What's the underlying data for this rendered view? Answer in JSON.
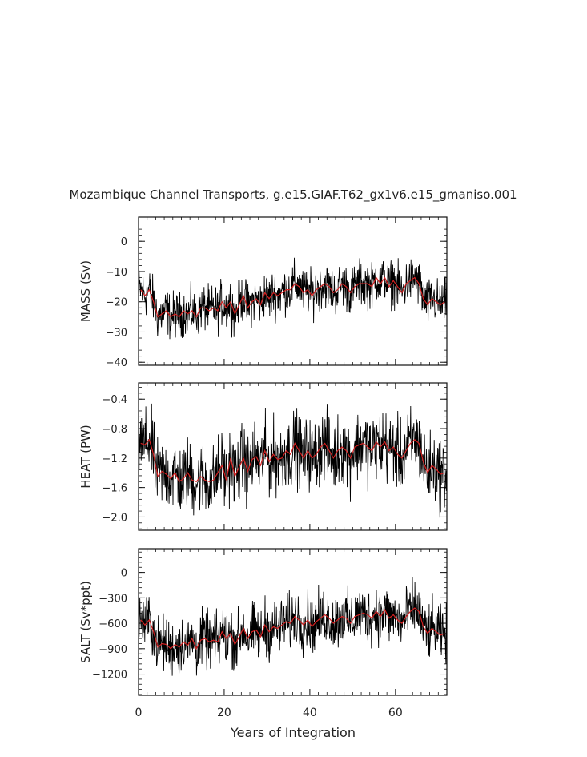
{
  "chart_data": {
    "type": "line",
    "title": "Mozambique Channel Transports, g.e15.GIAF.T62_gx1v6.e15_gmaniso.001",
    "xlabel": "Years of Integration",
    "xlim": [
      0,
      72
    ],
    "xticks": [
      0,
      20,
      40,
      60
    ],
    "xtick_labels": [
      "0",
      "20",
      "40",
      "60"
    ],
    "grid": false,
    "colors": {
      "monthly": "#000000",
      "annual": "#d42020"
    },
    "panels": [
      {
        "ylabel": "MASS (Sv)",
        "ylim": [
          -41,
          8
        ],
        "yticks": [
          0,
          -10,
          -20,
          -30,
          -40
        ],
        "ytick_labels": [
          "0",
          "−10",
          "−20",
          "−30",
          "−40"
        ],
        "annual_x": [
          0.5,
          1.5,
          2.5,
          3.5,
          4.5,
          5.5,
          6.5,
          7.5,
          8.5,
          9.5,
          10.5,
          11.5,
          12.5,
          13.5,
          14.5,
          15.5,
          16.5,
          17.5,
          18.5,
          19.5,
          20.5,
          21.5,
          22.5,
          23.5,
          24.5,
          25.5,
          26.5,
          27.5,
          28.5,
          29.5,
          30.5,
          31.5,
          32.5,
          33.5,
          34.5,
          35.5,
          36.5,
          37.5,
          38.5,
          39.5,
          40.5,
          41.5,
          42.5,
          43.5,
          44.5,
          45.5,
          46.5,
          47.5,
          48.5,
          49.5,
          50.5,
          51.5,
          52.5,
          53.5,
          54.5,
          55.5,
          56.5,
          57.5,
          58.5,
          59.5,
          60.5,
          61.5,
          62.5,
          63.5,
          64.5,
          65.5,
          66.5,
          67.5,
          68.5,
          69.5,
          70.5,
          71.5
        ],
        "annual": [
          -16,
          -18,
          -16,
          -20,
          -25,
          -24,
          -23,
          -25,
          -24,
          -25,
          -23,
          -24,
          -23,
          -25,
          -22,
          -22,
          -23,
          -22,
          -23,
          -20,
          -22,
          -20,
          -24,
          -21,
          -18,
          -22,
          -20,
          -19,
          -21,
          -17,
          -19,
          -17,
          -18,
          -17,
          -16,
          -16,
          -14,
          -15,
          -17,
          -16,
          -18,
          -16,
          -15,
          -14,
          -15,
          -17,
          -16,
          -14,
          -15,
          -17,
          -15,
          -14,
          -14,
          -14,
          -15,
          -12,
          -14,
          -12,
          -15,
          -13,
          -15,
          -17,
          -14,
          -13,
          -12,
          -14,
          -19,
          -21,
          -19,
          -20,
          -21,
          -20
        ],
        "mean_start": -21,
        "mean_end": -15,
        "amplitude": 6
      },
      {
        "ylabel": "HEAT (PW)",
        "ylim": [
          -2.18,
          -0.18
        ],
        "yticks": [
          -0.4,
          -0.8,
          -1.2,
          -1.6,
          -2.0
        ],
        "ytick_labels": [
          "−0.4",
          "−0.8",
          "−1.2",
          "−1.6",
          "−2.0"
        ],
        "annual_x": [
          0.5,
          1.5,
          2.5,
          3.5,
          4.5,
          5.5,
          6.5,
          7.5,
          8.5,
          9.5,
          10.5,
          11.5,
          12.5,
          13.5,
          14.5,
          15.5,
          16.5,
          17.5,
          18.5,
          19.5,
          20.5,
          21.5,
          22.5,
          23.5,
          24.5,
          25.5,
          26.5,
          27.5,
          28.5,
          29.5,
          30.5,
          31.5,
          32.5,
          33.5,
          34.5,
          35.5,
          36.5,
          37.5,
          38.5,
          39.5,
          40.5,
          41.5,
          42.5,
          43.5,
          44.5,
          45.5,
          46.5,
          47.5,
          48.5,
          49.5,
          50.5,
          51.5,
          52.5,
          53.5,
          54.5,
          55.5,
          56.5,
          57.5,
          58.5,
          59.5,
          60.5,
          61.5,
          62.5,
          63.5,
          64.5,
          65.5,
          66.5,
          67.5,
          68.5,
          69.5,
          70.5,
          71.5
        ],
        "annual": [
          -1.0,
          -1.02,
          -0.95,
          -1.15,
          -1.45,
          -1.38,
          -1.42,
          -1.48,
          -1.4,
          -1.52,
          -1.48,
          -1.4,
          -1.5,
          -1.52,
          -1.45,
          -1.5,
          -1.52,
          -1.5,
          -1.4,
          -1.3,
          -1.5,
          -1.2,
          -1.45,
          -1.32,
          -1.2,
          -1.38,
          -1.22,
          -1.18,
          -1.3,
          -1.1,
          -1.25,
          -1.15,
          -1.22,
          -1.2,
          -1.1,
          -1.15,
          -1.0,
          -1.1,
          -1.2,
          -1.1,
          -1.2,
          -1.15,
          -1.05,
          -1.0,
          -1.1,
          -1.2,
          -1.1,
          -1.05,
          -1.1,
          -1.2,
          -1.05,
          -1.02,
          -1.0,
          -1.05,
          -1.1,
          -0.98,
          -1.05,
          -0.98,
          -1.1,
          -1.05,
          -1.15,
          -1.2,
          -1.1,
          -1.0,
          -0.95,
          -1.0,
          -1.25,
          -1.4,
          -1.3,
          -1.35,
          -1.42,
          -1.4
        ],
        "mean_start": -1.45,
        "mean_end": -1.05,
        "amplitude": 0.38
      },
      {
        "ylabel": "SALT (Sv*ppt)",
        "ylim": [
          -1450,
          280
        ],
        "yticks": [
          0,
          -300,
          -600,
          -900,
          -1200
        ],
        "ytick_labels": [
          "0",
          "−300",
          "−600",
          "−900",
          "−1200"
        ],
        "annual_x": [
          0.5,
          1.5,
          2.5,
          3.5,
          4.5,
          5.5,
          6.5,
          7.5,
          8.5,
          9.5,
          10.5,
          11.5,
          12.5,
          13.5,
          14.5,
          15.5,
          16.5,
          17.5,
          18.5,
          19.5,
          20.5,
          21.5,
          22.5,
          23.5,
          24.5,
          25.5,
          26.5,
          27.5,
          28.5,
          29.5,
          30.5,
          31.5,
          32.5,
          33.5,
          34.5,
          35.5,
          36.5,
          37.5,
          38.5,
          39.5,
          40.5,
          41.5,
          42.5,
          43.5,
          44.5,
          45.5,
          46.5,
          47.5,
          48.5,
          49.5,
          50.5,
          51.5,
          52.5,
          53.5,
          54.5,
          55.5,
          56.5,
          57.5,
          58.5,
          59.5,
          60.5,
          61.5,
          62.5,
          63.5,
          64.5,
          65.5,
          66.5,
          67.5,
          68.5,
          69.5,
          70.5,
          71.5
        ],
        "annual": [
          -560,
          -620,
          -560,
          -700,
          -880,
          -840,
          -850,
          -900,
          -850,
          -880,
          -820,
          -860,
          -780,
          -900,
          -800,
          -780,
          -820,
          -800,
          -820,
          -700,
          -780,
          -720,
          -850,
          -760,
          -660,
          -780,
          -700,
          -680,
          -760,
          -620,
          -700,
          -640,
          -660,
          -620,
          -580,
          -600,
          -520,
          -560,
          -620,
          -560,
          -640,
          -580,
          -540,
          -500,
          -540,
          -600,
          -560,
          -520,
          -540,
          -600,
          -520,
          -500,
          -480,
          -500,
          -540,
          -460,
          -520,
          -440,
          -540,
          -500,
          -560,
          -600,
          -520,
          -460,
          -420,
          -460,
          -640,
          -720,
          -660,
          -700,
          -740,
          -720
        ],
        "mean_start": -760,
        "mean_end": -520,
        "amplitude": 260
      }
    ]
  }
}
